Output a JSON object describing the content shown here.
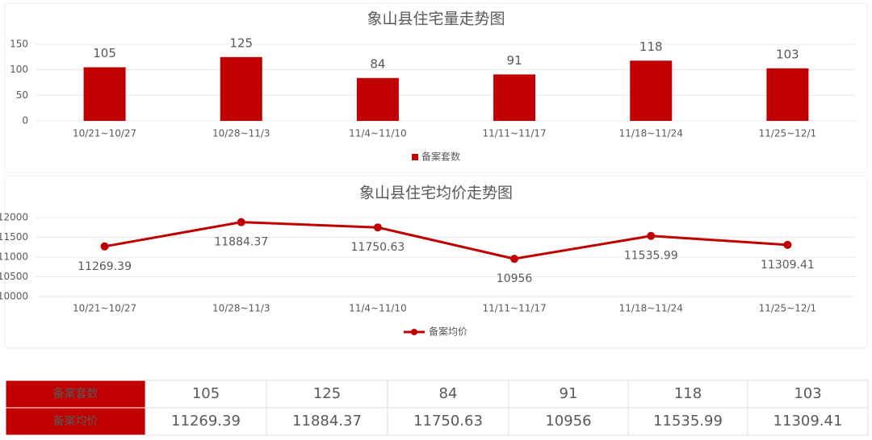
{
  "chart_data": [
    {
      "type": "bar",
      "title": "象山县住宅量走势图",
      "categories": [
        "10/21~10/27",
        "10/28~11/3",
        "11/4~11/10",
        "11/11~11/17",
        "11/18~11/24",
        "11/25~12/1"
      ],
      "series": [
        {
          "name": "备案套数",
          "color": "#c00000",
          "values": [
            105,
            125,
            84,
            91,
            118,
            103
          ]
        }
      ],
      "ylim": [
        0,
        150
      ],
      "yticks": [
        0,
        50,
        100,
        150
      ],
      "grid": true,
      "legend": "bottom"
    },
    {
      "type": "line",
      "title": "象山县住宅均价走势图",
      "categories": [
        "10/21~10/27",
        "10/28~11/3",
        "11/4~11/10",
        "11/11~11/17",
        "11/18~11/24",
        "11/25~12/1"
      ],
      "series": [
        {
          "name": "备案均价",
          "color": "#c00000",
          "values": [
            11269.39,
            11884.37,
            11750.63,
            10956,
            11535.99,
            11309.41
          ]
        }
      ],
      "ylim": [
        10000,
        12000
      ],
      "yticks": [
        10000,
        10500,
        11000,
        11500,
        12000
      ],
      "grid": true,
      "legend": "bottom"
    }
  ],
  "table": {
    "rows": [
      [
        "备案套数",
        105,
        125,
        84,
        91,
        118,
        103
      ],
      [
        "备案均价",
        11269.39,
        11884.37,
        11750.63,
        10956,
        11535.99,
        11309.41
      ]
    ]
  }
}
